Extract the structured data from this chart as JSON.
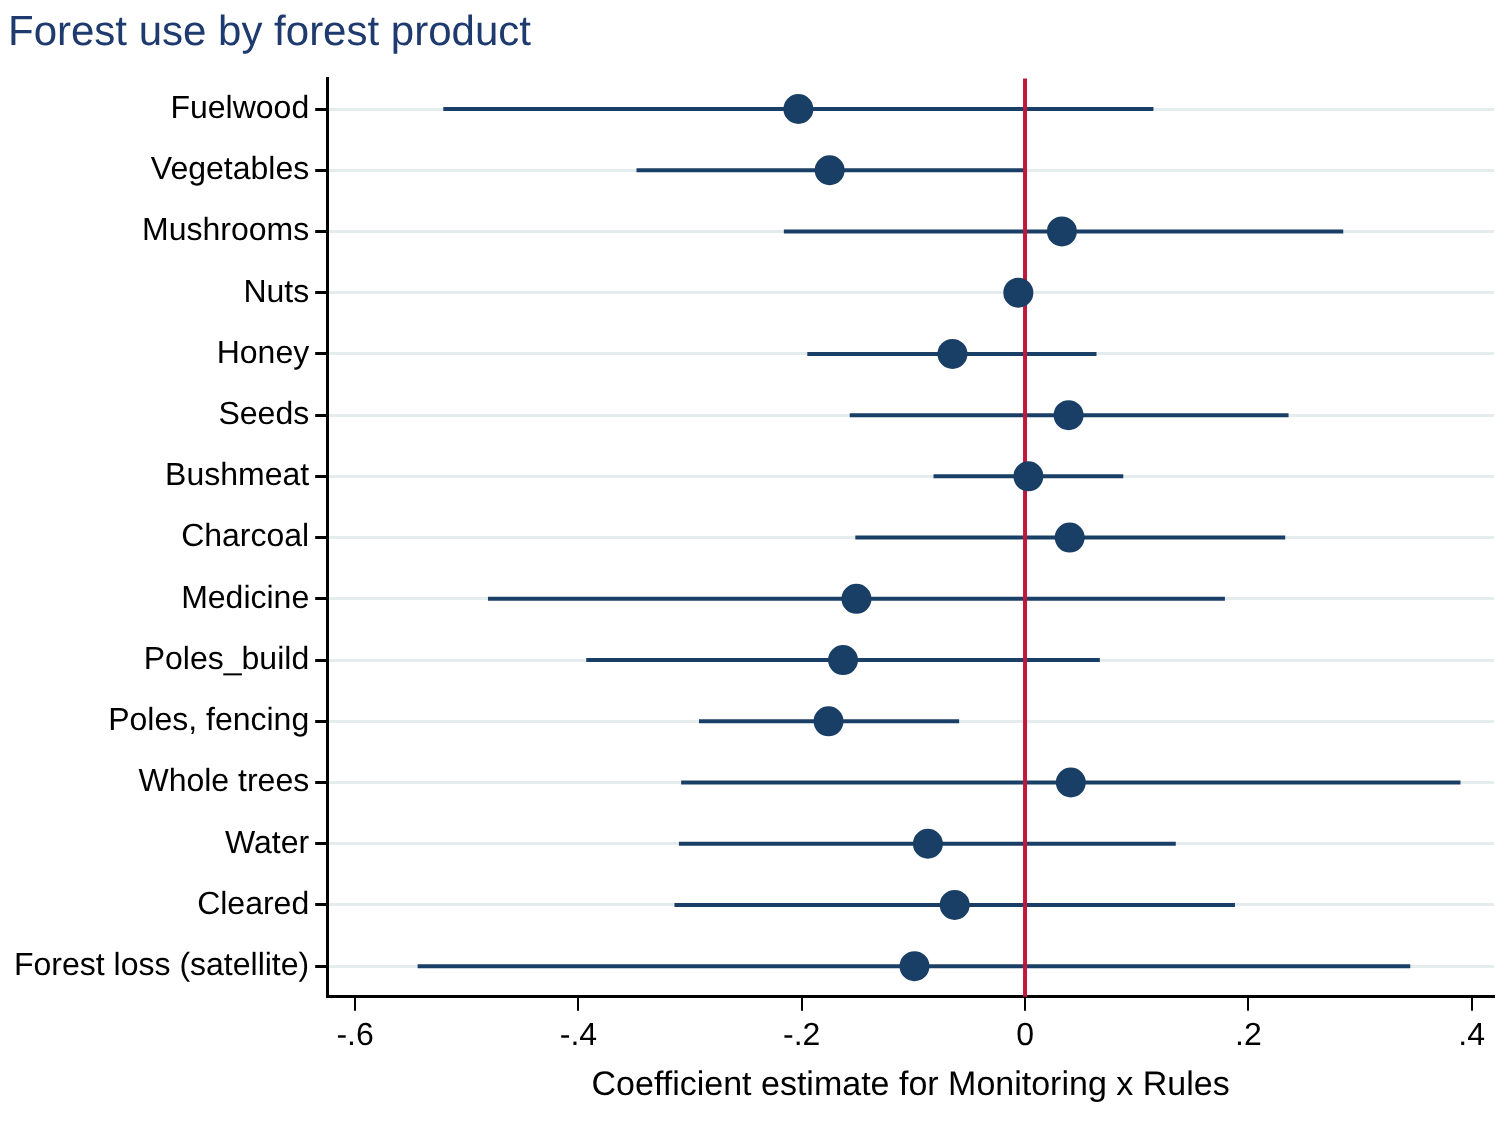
{
  "chart_data": {
    "type": "scatter",
    "orientation": "horizontal",
    "title": "Forest use by forest product",
    "xlabel": "Coefficient estimate for Monitoring x Rules",
    "categories": [
      "Fuelwood",
      "Vegetables",
      "Mushrooms",
      "Nuts",
      "Honey",
      "Seeds",
      "Bushmeat",
      "Charcoal",
      "Medicine",
      "Poles_build",
      "Poles, fencing",
      "Whole trees",
      "Water",
      "Cleared",
      "Forest loss (satellite)"
    ],
    "values": [
      -0.203,
      -0.175,
      0.033,
      -0.006,
      -0.065,
      0.039,
      0.003,
      0.04,
      -0.151,
      -0.163,
      -0.176,
      0.041,
      -0.087,
      -0.063,
      -0.099
    ],
    "errors": [
      [
        -0.521,
        0.115
      ],
      [
        -0.348,
        0
      ],
      [
        -0.216,
        0.285
      ],
      null,
      [
        -0.195,
        0.064
      ],
      [
        -0.157,
        0.236
      ],
      [
        -0.082,
        0.088
      ],
      [
        -0.152,
        0.233
      ],
      [
        -0.481,
        0.179
      ],
      [
        -0.393,
        0.067
      ],
      [
        -0.292,
        -0.059
      ],
      [
        -0.308,
        0.39
      ],
      [
        -0.31,
        0.135
      ],
      [
        -0.314,
        0.188
      ],
      [
        -0.544,
        0.345
      ]
    ],
    "color": "#1a3f66",
    "marker": "circle",
    "xlim": [
      -0.625,
      0.42
    ],
    "xticks": [
      {
        "value": -0.6,
        "label": "-.6"
      },
      {
        "value": -0.4,
        "label": "-.4"
      },
      {
        "value": -0.2,
        "label": "-.2"
      },
      0,
      {
        "value": 0.2,
        "label": ".2"
      },
      {
        "value": 0.4,
        "label": ".4"
      }
    ],
    "ref_lines": [
      {
        "axis": "x",
        "value": 0,
        "color": "#c0183c"
      }
    ],
    "grid": "y"
  }
}
